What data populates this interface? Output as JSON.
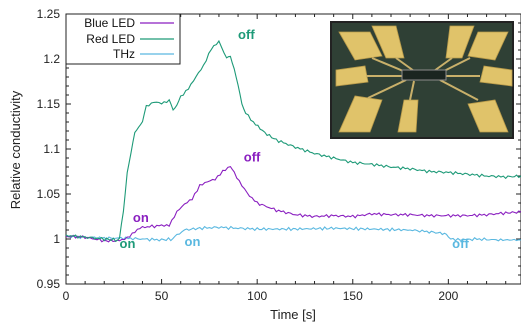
{
  "chart_data": {
    "type": "line",
    "xlabel": "Time [s]",
    "ylabel": "Relative conductivity",
    "xlim": [
      0,
      238
    ],
    "ylim": [
      0.95,
      1.25
    ],
    "x_ticks": [
      "0",
      "50",
      "100",
      "150",
      "200"
    ],
    "y_ticks": [
      "0.95",
      "1",
      "1.05",
      "1.1",
      "1.15",
      "1.2",
      "1.25"
    ],
    "legend_position": "top-left",
    "series": [
      {
        "name": "Blue LED",
        "color": "#8a1fc0",
        "points": [
          [
            0,
            1.003
          ],
          [
            10,
            1.002
          ],
          [
            20,
            0.998
          ],
          [
            28,
            0.998
          ],
          [
            32,
            1.002
          ],
          [
            36,
            1.008
          ],
          [
            40,
            1.013
          ],
          [
            45,
            1.014
          ],
          [
            50,
            1.015
          ],
          [
            54,
            1.016
          ],
          [
            58,
            1.03
          ],
          [
            62,
            1.038
          ],
          [
            66,
            1.045
          ],
          [
            70,
            1.06
          ],
          [
            74,
            1.063
          ],
          [
            78,
            1.066
          ],
          [
            82,
            1.076
          ],
          [
            86,
            1.081
          ],
          [
            88,
            1.074
          ],
          [
            92,
            1.06
          ],
          [
            96,
            1.047
          ],
          [
            100,
            1.04
          ],
          [
            110,
            1.032
          ],
          [
            120,
            1.027
          ],
          [
            130,
            1.025
          ],
          [
            140,
            1.026
          ],
          [
            150,
            1.025
          ],
          [
            160,
            1.028
          ],
          [
            170,
            1.027
          ],
          [
            180,
            1.027
          ],
          [
            190,
            1.026
          ],
          [
            200,
            1.026
          ],
          [
            210,
            1.026
          ],
          [
            220,
            1.027
          ],
          [
            230,
            1.029
          ],
          [
            238,
            1.03
          ]
        ]
      },
      {
        "name": "Red LED",
        "color": "#1e9a78",
        "points": [
          [
            0,
            1.004
          ],
          [
            10,
            1.002
          ],
          [
            20,
            1.0
          ],
          [
            26,
            0.999
          ],
          [
            28,
            1.0
          ],
          [
            30,
            1.03
          ],
          [
            32,
            1.075
          ],
          [
            34,
            1.095
          ],
          [
            36,
            1.118
          ],
          [
            38,
            1.125
          ],
          [
            40,
            1.13
          ],
          [
            42,
            1.148
          ],
          [
            46,
            1.152
          ],
          [
            50,
            1.15
          ],
          [
            54,
            1.154
          ],
          [
            56,
            1.143
          ],
          [
            58,
            1.15
          ],
          [
            60,
            1.158
          ],
          [
            64,
            1.168
          ],
          [
            68,
            1.18
          ],
          [
            72,
            1.192
          ],
          [
            76,
            1.212
          ],
          [
            80,
            1.22
          ],
          [
            84,
            1.2
          ],
          [
            86,
            1.203
          ],
          [
            88,
            1.19
          ],
          [
            90,
            1.17
          ],
          [
            92,
            1.15
          ],
          [
            94,
            1.14
          ],
          [
            98,
            1.13
          ],
          [
            104,
            1.118
          ],
          [
            110,
            1.11
          ],
          [
            120,
            1.102
          ],
          [
            130,
            1.095
          ],
          [
            140,
            1.09
          ],
          [
            150,
            1.085
          ],
          [
            160,
            1.083
          ],
          [
            170,
            1.08
          ],
          [
            180,
            1.078
          ],
          [
            190,
            1.075
          ],
          [
            200,
            1.074
          ],
          [
            210,
            1.072
          ],
          [
            220,
            1.07
          ],
          [
            230,
            1.069
          ],
          [
            238,
            1.07
          ]
        ]
      },
      {
        "name": "THz",
        "color": "#5ab8e0",
        "points": [
          [
            0,
            1.003
          ],
          [
            10,
            1.002
          ],
          [
            20,
            1.001
          ],
          [
            30,
            1.001
          ],
          [
            40,
            1.0
          ],
          [
            50,
            0.999
          ],
          [
            56,
            1.0
          ],
          [
            58,
            1.005
          ],
          [
            62,
            1.01
          ],
          [
            70,
            1.012
          ],
          [
            80,
            1.013
          ],
          [
            90,
            1.012
          ],
          [
            100,
            1.011
          ],
          [
            120,
            1.011
          ],
          [
            140,
            1.012
          ],
          [
            160,
            1.011
          ],
          [
            180,
            1.01
          ],
          [
            190,
            1.008
          ],
          [
            198,
            1.006
          ],
          [
            200,
            1.001
          ],
          [
            205,
            0.999
          ],
          [
            215,
            1.0
          ],
          [
            225,
            0.999
          ],
          [
            238,
            0.999
          ]
        ]
      }
    ],
    "annotations": [
      {
        "text": "off",
        "x": 90,
        "y": 1.222,
        "color": "#1e9a78"
      },
      {
        "text": "off",
        "x": 93,
        "y": 1.086,
        "color": "#8a1fc0"
      },
      {
        "text": "on",
        "x": 35,
        "y": 1.019,
        "color": "#8a1fc0"
      },
      {
        "text": "on",
        "x": 28,
        "y": 0.99,
        "color": "#1e9a78"
      },
      {
        "text": "on",
        "x": 62,
        "y": 0.992,
        "color": "#5ab8e0"
      },
      {
        "text": "off",
        "x": 202,
        "y": 0.99,
        "color": "#5ab8e0"
      }
    ],
    "inset": {
      "description_icon": "device-micrograph-image",
      "background": "#2f4035",
      "pad_color": "#e0c36a",
      "border": "#222222"
    }
  }
}
